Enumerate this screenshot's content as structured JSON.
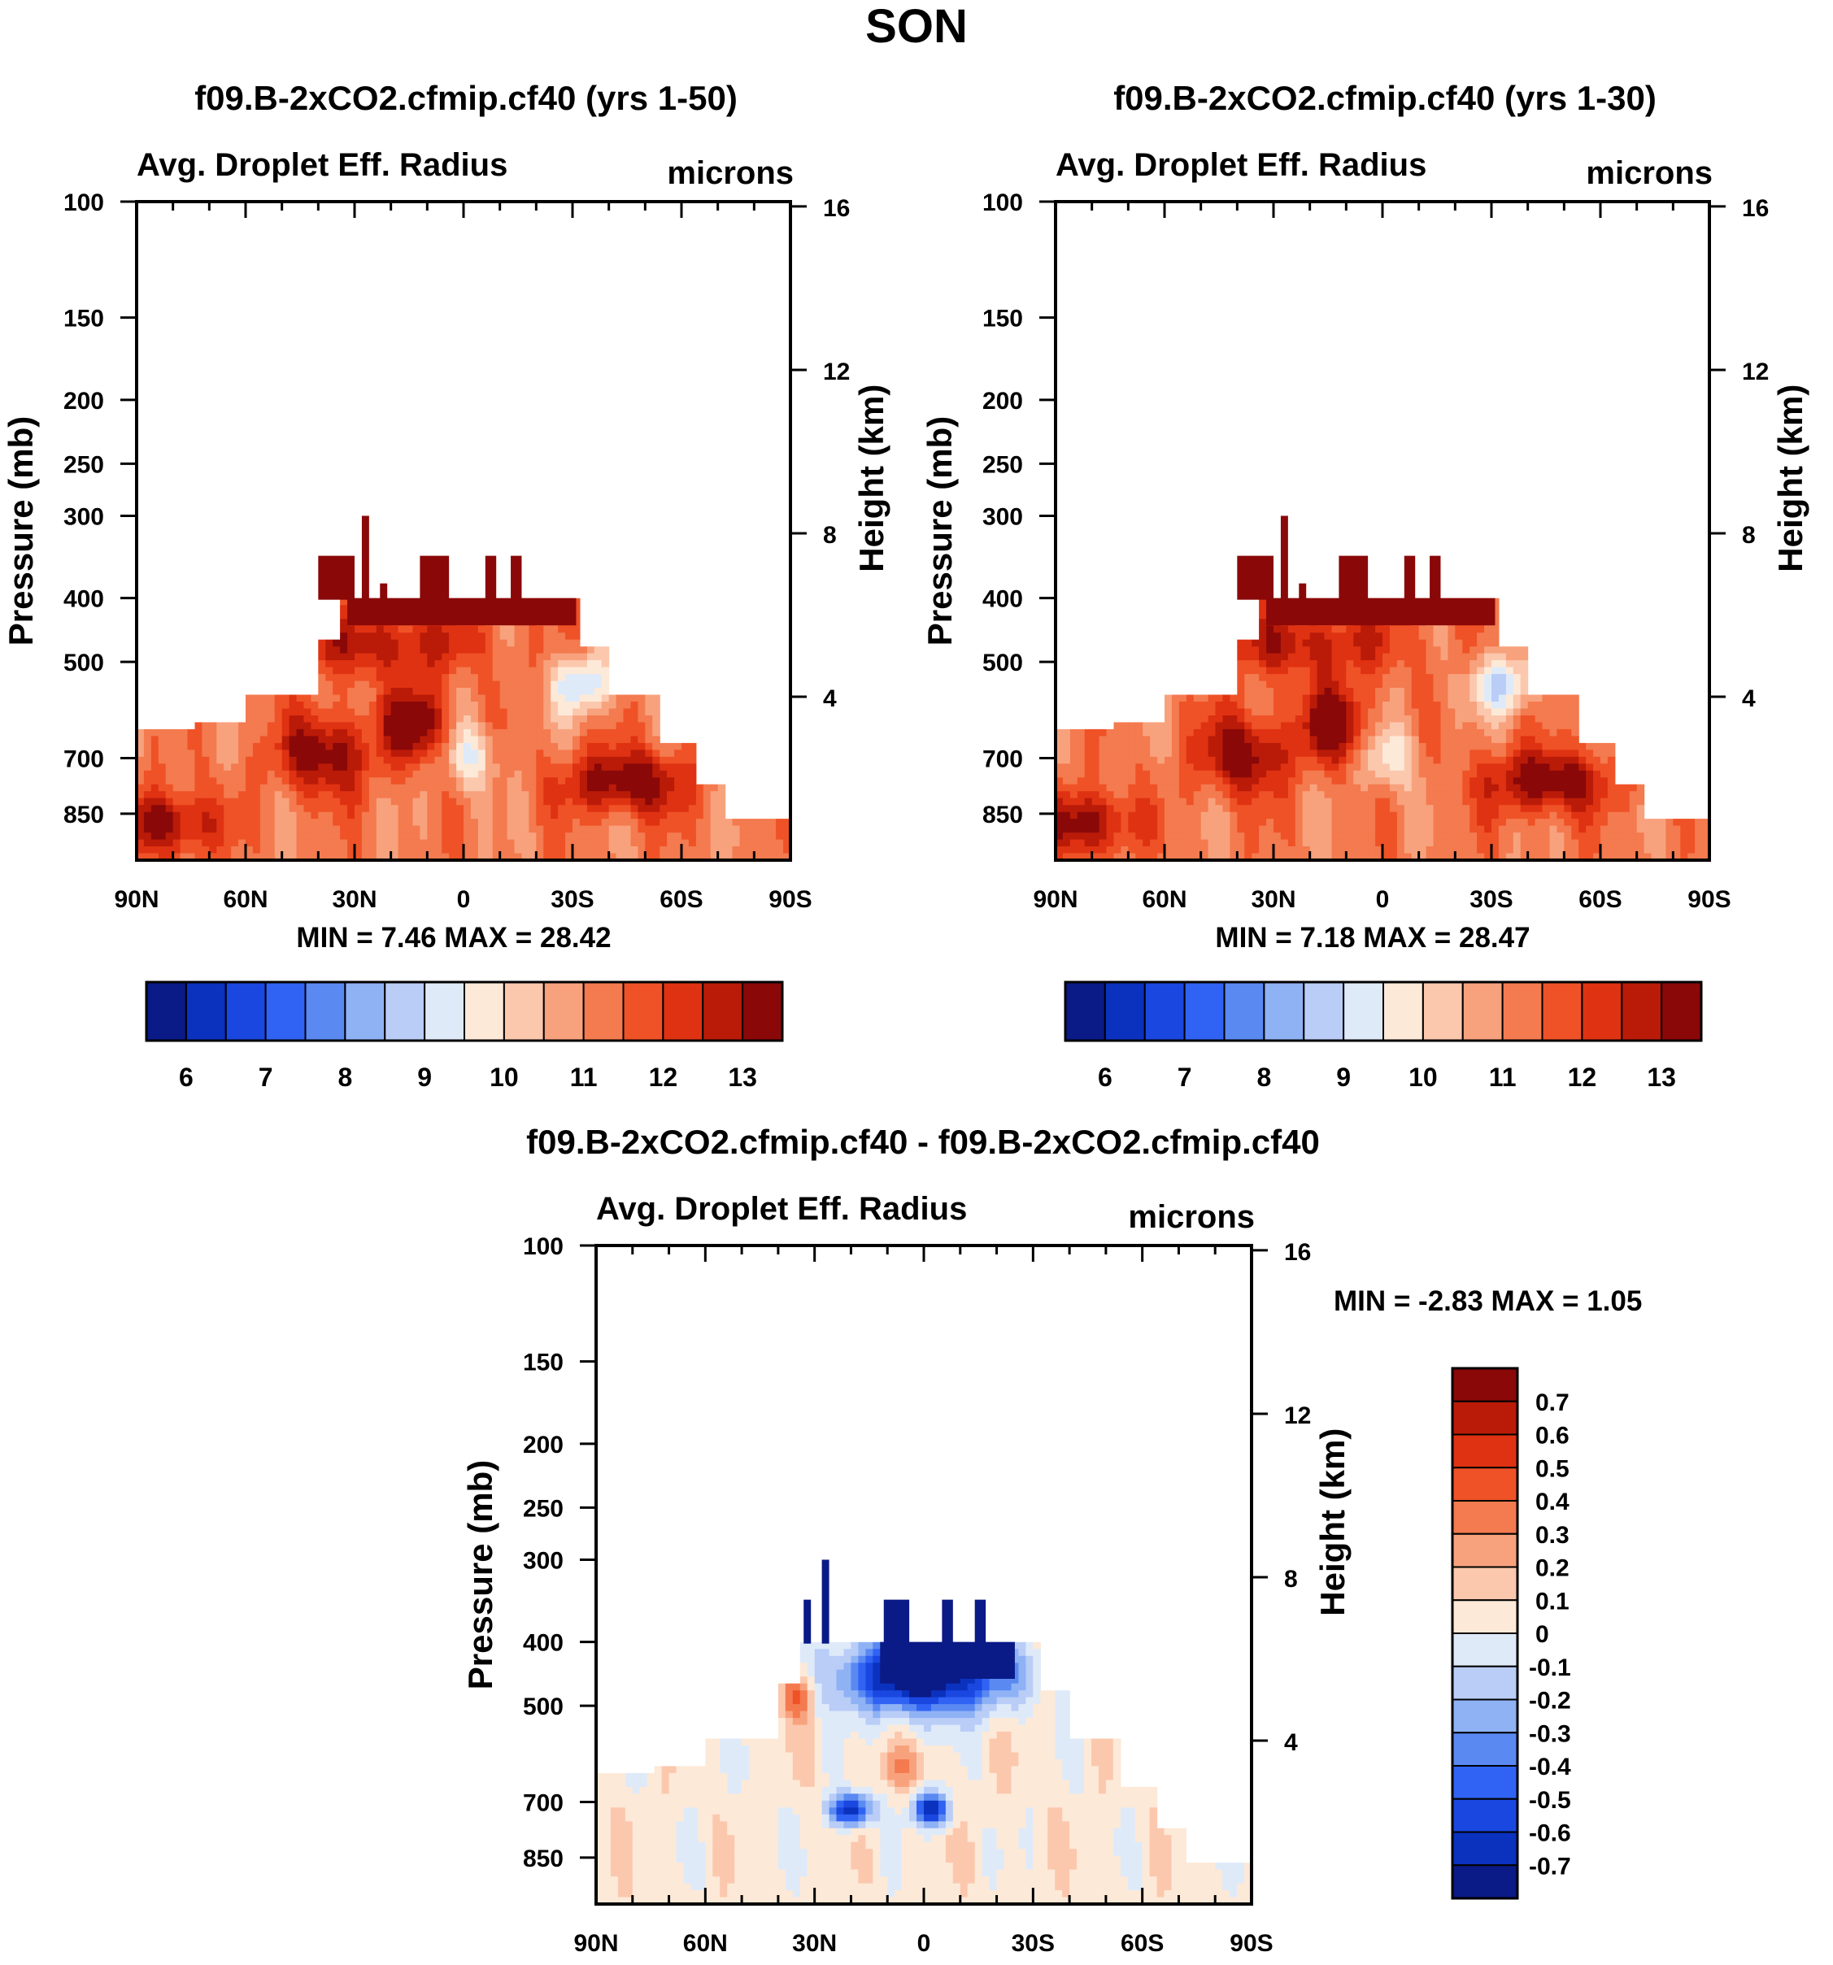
{
  "figure": {
    "title": "SON",
    "colors": {
      "ink": "#000000",
      "background": "#ffffff"
    }
  },
  "chart_data": [
    {
      "type": "heatmap",
      "title": "f09.B-2xCO2.cfmip.cf40 (yrs 1-50)",
      "left_title": "Avg. Droplet Eff. Radius",
      "right_title": "microns",
      "xlabel": "",
      "ylabel": "Pressure (mb)",
      "ylabel_right": "Height (km)",
      "x_ticklabels": [
        "90N",
        "60N",
        "30N",
        "0",
        "30S",
        "60S",
        "90S"
      ],
      "y_ticks": [
        100,
        150,
        200,
        250,
        300,
        400,
        500,
        700,
        850
      ],
      "y_ticklabels": [
        "100",
        "150",
        "200",
        "250",
        "300",
        "400",
        "500",
        "700",
        "850"
      ],
      "ylim": [
        100,
        1000
      ],
      "right_axis_ticks_km": [
        4,
        8,
        12,
        16
      ],
      "right_axis_ticklabels": [
        "4",
        "8",
        "12",
        "16"
      ],
      "stats_text": "MIN =   7.46  MAX =  28.42",
      "min": 7.46,
      "max": 28.42,
      "colorbar": {
        "orientation": "horizontal",
        "levels": [
          6,
          6.5,
          7,
          7.5,
          8,
          8.5,
          9,
          9.5,
          10,
          10.5,
          11,
          11.5,
          12,
          12.5,
          13
        ],
        "labels": [
          "6",
          "7",
          "8",
          "9",
          "10",
          "11",
          "12",
          "13"
        ],
        "colors": [
          "#0a1a86",
          "#0a32bf",
          "#1a47e0",
          "#3063f4",
          "#5a89f2",
          "#8fb2f5",
          "#b9cdf7",
          "#dfeaf9",
          "#fde9d7",
          "#fbc8ae",
          "#f8a27d",
          "#f47a4f",
          "#ef5227",
          "#df3212",
          "#ba1b08",
          "#8a0808"
        ]
      }
    },
    {
      "type": "heatmap",
      "title": "f09.B-2xCO2.cfmip.cf40 (yrs 1-30)",
      "left_title": "Avg. Droplet Eff. Radius",
      "right_title": "microns",
      "xlabel": "",
      "ylabel": "Pressure (mb)",
      "ylabel_right": "Height (km)",
      "x_ticklabels": [
        "90N",
        "60N",
        "30N",
        "0",
        "30S",
        "60S",
        "90S"
      ],
      "y_ticks": [
        100,
        150,
        200,
        250,
        300,
        400,
        500,
        700,
        850
      ],
      "y_ticklabels": [
        "100",
        "150",
        "200",
        "250",
        "300",
        "400",
        "500",
        "700",
        "850"
      ],
      "ylim": [
        100,
        1000
      ],
      "right_axis_ticks_km": [
        4,
        8,
        12,
        16
      ],
      "right_axis_ticklabels": [
        "4",
        "8",
        "12",
        "16"
      ],
      "stats_text": "MIN =   7.18  MAX =  28.47",
      "min": 7.18,
      "max": 28.47,
      "colorbar": {
        "orientation": "horizontal",
        "levels": [
          6,
          6.5,
          7,
          7.5,
          8,
          8.5,
          9,
          9.5,
          10,
          10.5,
          11,
          11.5,
          12,
          12.5,
          13
        ],
        "labels": [
          "6",
          "7",
          "8",
          "9",
          "10",
          "11",
          "12",
          "13"
        ],
        "colors": [
          "#0a1a86",
          "#0a32bf",
          "#1a47e0",
          "#3063f4",
          "#5a89f2",
          "#8fb2f5",
          "#b9cdf7",
          "#dfeaf9",
          "#fde9d7",
          "#fbc8ae",
          "#f8a27d",
          "#f47a4f",
          "#ef5227",
          "#df3212",
          "#ba1b08",
          "#8a0808"
        ]
      }
    },
    {
      "type": "heatmap",
      "title": "f09.B-2xCO2.cfmip.cf40 - f09.B-2xCO2.cfmip.cf40",
      "left_title": "Avg. Droplet Eff. Radius",
      "right_title": "microns",
      "xlabel": "",
      "ylabel": "Pressure (mb)",
      "ylabel_right": "Height (km)",
      "x_ticklabels": [
        "90N",
        "60N",
        "30N",
        "0",
        "30S",
        "60S",
        "90S"
      ],
      "y_ticks": [
        100,
        150,
        200,
        250,
        300,
        400,
        500,
        700,
        850
      ],
      "y_ticklabels": [
        "100",
        "150",
        "200",
        "250",
        "300",
        "400",
        "500",
        "700",
        "850"
      ],
      "ylim": [
        100,
        1000
      ],
      "right_axis_ticks_km": [
        4,
        8,
        12,
        16
      ],
      "right_axis_ticklabels": [
        "4",
        "8",
        "12",
        "16"
      ],
      "stats_text": "MIN =  -2.83  MAX =   1.05",
      "min": -2.83,
      "max": 1.05,
      "colorbar": {
        "orientation": "vertical",
        "levels": [
          0.7,
          0.6,
          0.5,
          0.4,
          0.3,
          0.2,
          0.1,
          0,
          -0.1,
          -0.2,
          -0.3,
          -0.4,
          -0.5,
          -0.6,
          -0.7
        ],
        "labels": [
          "0.7",
          "0.6",
          "0.5",
          "0.4",
          "0.3",
          "0.2",
          "0.1",
          "0",
          "-0.1",
          "-0.2",
          "-0.3",
          "-0.4",
          "-0.5",
          "-0.6",
          "-0.7"
        ],
        "colors": [
          "#8a0808",
          "#ba1b08",
          "#df3212",
          "#ef5227",
          "#f47a4f",
          "#f8a27d",
          "#fbc8ae",
          "#fde9d7",
          "#dfeaf9",
          "#b9cdf7",
          "#8fb2f5",
          "#5a89f2",
          "#3063f4",
          "#1a47e0",
          "#0a32bf",
          "#0a1a86"
        ]
      }
    }
  ]
}
